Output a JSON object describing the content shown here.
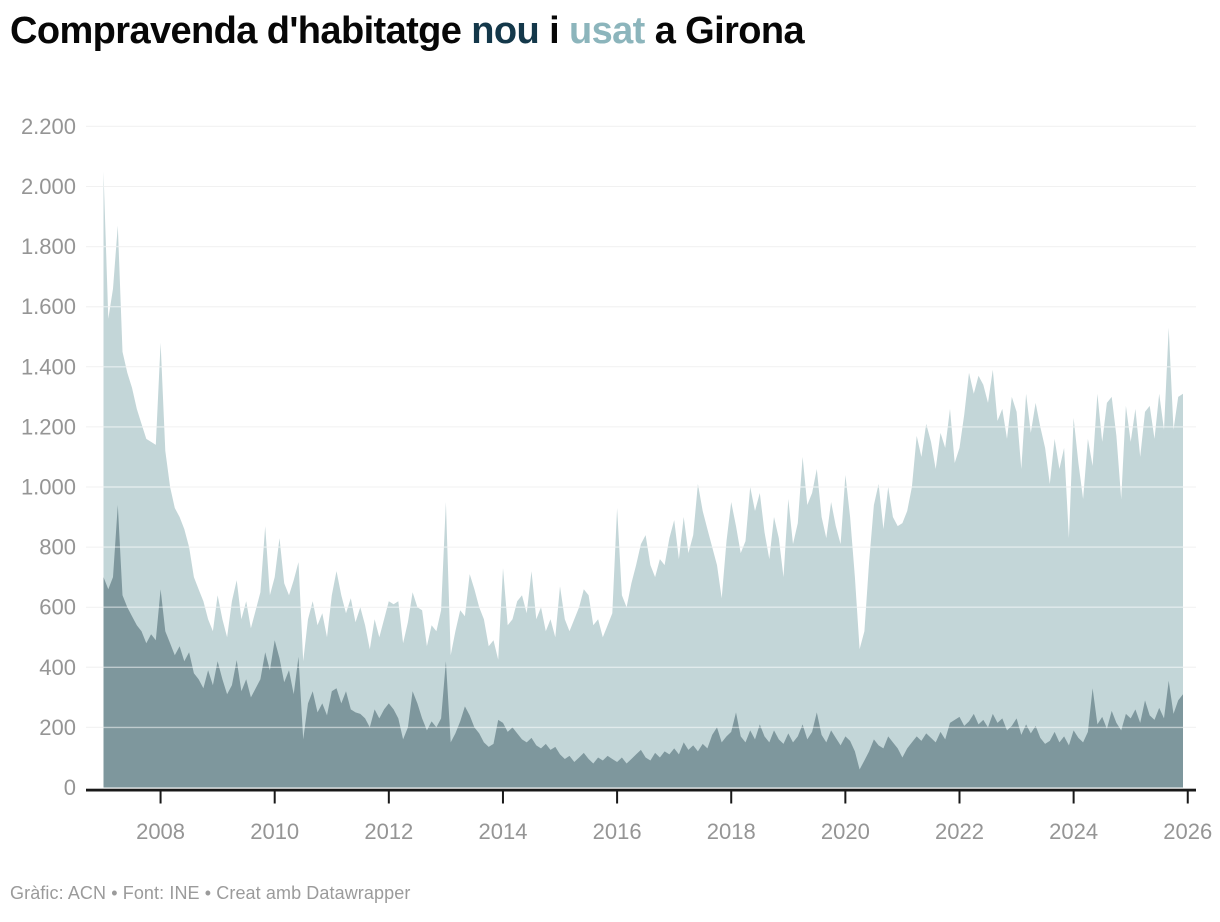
{
  "title": {
    "parts": [
      {
        "text": "Compravenda d'habitatge "
      },
      {
        "text": "nou"
      },
      {
        "text": " i "
      },
      {
        "text": "usat"
      },
      {
        "text": " a Girona"
      }
    ]
  },
  "footer": {
    "text": "Gràfic: ACN • Font: INE • Creat amb Datawrapper"
  },
  "colors": {
    "title_text": "#070707",
    "nou_accent": "#14384a",
    "usat_accent": "#8cb5bc",
    "area_usat": "#c3d6d8",
    "area_nou": "#7e979d",
    "gridline": "#e3e3e3",
    "gridline_over_area": "rgba(255,255,255,0.5)",
    "baseline": "#191919",
    "axis_text": "#959595",
    "footer_text": "#9b9b9b"
  },
  "chart_data": {
    "type": "area",
    "title": "Compravenda d'habitatge nou i usat a Girona",
    "subtitle": "",
    "xlabel": "",
    "ylabel": "",
    "frequency": "monthly",
    "x_start": "2007-01",
    "x_end": "2025-12",
    "ylim": [
      0,
      2200
    ],
    "y_tick_step": 200,
    "y_tick_labels": [
      "0",
      "200",
      "400",
      "600",
      "800",
      "1.000",
      "1.200",
      "1.400",
      "1.600",
      "1.800",
      "2.000",
      "2.200"
    ],
    "x_tick_years": [
      2008,
      2010,
      2012,
      2014,
      2016,
      2018,
      2020,
      2022,
      2024,
      2026
    ],
    "x_tick_labels": [
      "2008",
      "2010",
      "2012",
      "2014",
      "2016",
      "2018",
      "2020",
      "2022",
      "2024",
      "2026"
    ],
    "grid": "horizontal",
    "legend_position": "in-title",
    "series": [
      {
        "name": "usat",
        "color": "#c3d6d8",
        "values": [
          2050,
          1560,
          1660,
          1870,
          1450,
          1380,
          1330,
          1260,
          1210,
          1160,
          1150,
          1140,
          1480,
          1120,
          1000,
          930,
          900,
          860,
          800,
          700,
          660,
          620,
          560,
          520,
          640,
          560,
          500,
          620,
          690,
          560,
          620,
          530,
          590,
          650,
          870,
          640,
          700,
          830,
          680,
          640,
          690,
          750,
          420,
          560,
          620,
          540,
          580,
          500,
          640,
          720,
          640,
          580,
          630,
          550,
          600,
          540,
          460,
          560,
          500,
          560,
          620,
          610,
          620,
          480,
          550,
          650,
          600,
          590,
          470,
          540,
          520,
          590,
          950,
          440,
          520,
          590,
          570,
          710,
          660,
          600,
          560,
          470,
          490,
          425,
          730,
          540,
          560,
          620,
          640,
          580,
          720,
          560,
          600,
          520,
          560,
          500,
          670,
          560,
          520,
          560,
          600,
          660,
          640,
          540,
          560,
          500,
          540,
          580,
          930,
          640,
          600,
          680,
          740,
          810,
          840,
          740,
          700,
          760,
          740,
          830,
          890,
          760,
          900,
          780,
          840,
          1010,
          920,
          860,
          800,
          740,
          630,
          820,
          950,
          870,
          780,
          820,
          1000,
          920,
          980,
          850,
          760,
          900,
          830,
          700,
          960,
          810,
          880,
          1100,
          940,
          980,
          1060,
          900,
          830,
          950,
          870,
          810,
          1040,
          900,
          700,
          460,
          520,
          750,
          940,
          1010,
          860,
          1000,
          900,
          870,
          880,
          920,
          1000,
          1170,
          1100,
          1210,
          1150,
          1060,
          1180,
          1130,
          1260,
          1080,
          1130,
          1240,
          1380,
          1310,
          1370,
          1340,
          1280,
          1390,
          1220,
          1260,
          1160,
          1300,
          1250,
          1060,
          1310,
          1180,
          1280,
          1200,
          1130,
          1010,
          1160,
          1060,
          1130,
          830,
          1230,
          1080,
          960,
          1160,
          1070,
          1310,
          1150,
          1280,
          1300,
          1170,
          960,
          1270,
          1150,
          1260,
          1100,
          1250,
          1270,
          1160,
          1310,
          1190,
          1530,
          1190,
          1300,
          1310
        ]
      },
      {
        "name": "nou",
        "color": "#7e979d",
        "values": [
          700,
          660,
          700,
          940,
          640,
          600,
          570,
          540,
          520,
          480,
          510,
          490,
          660,
          520,
          480,
          440,
          470,
          420,
          450,
          380,
          360,
          330,
          390,
          340,
          420,
          360,
          310,
          340,
          424,
          320,
          360,
          300,
          330,
          360,
          450,
          390,
          490,
          430,
          350,
          390,
          310,
          435,
          160,
          280,
          320,
          250,
          280,
          240,
          320,
          330,
          280,
          320,
          260,
          250,
          245,
          230,
          200,
          260,
          230,
          260,
          280,
          260,
          230,
          160,
          200,
          320,
          280,
          230,
          190,
          220,
          200,
          230,
          420,
          150,
          180,
          220,
          270,
          240,
          200,
          180,
          150,
          135,
          145,
          225,
          215,
          185,
          200,
          180,
          160,
          150,
          165,
          140,
          130,
          145,
          125,
          135,
          110,
          95,
          105,
          85,
          100,
          115,
          95,
          80,
          100,
          90,
          105,
          95,
          85,
          100,
          80,
          95,
          110,
          125,
          100,
          90,
          115,
          100,
          120,
          110,
          130,
          110,
          150,
          125,
          140,
          120,
          145,
          130,
          175,
          200,
          150,
          170,
          185,
          250,
          170,
          150,
          190,
          160,
          210,
          170,
          150,
          190,
          160,
          145,
          180,
          150,
          170,
          210,
          160,
          185,
          250,
          175,
          150,
          190,
          165,
          140,
          170,
          155,
          120,
          60,
          90,
          120,
          160,
          140,
          130,
          170,
          150,
          130,
          100,
          130,
          150,
          170,
          155,
          180,
          165,
          150,
          185,
          160,
          215,
          225,
          235,
          205,
          220,
          245,
          210,
          225,
          200,
          245,
          215,
          230,
          190,
          205,
          230,
          175,
          210,
          180,
          205,
          165,
          145,
          155,
          185,
          150,
          170,
          140,
          190,
          165,
          150,
          185,
          330,
          210,
          235,
          195,
          255,
          215,
          190,
          245,
          230,
          260,
          215,
          290,
          240,
          225,
          265,
          230,
          355,
          245,
          290,
          310
        ]
      }
    ]
  }
}
